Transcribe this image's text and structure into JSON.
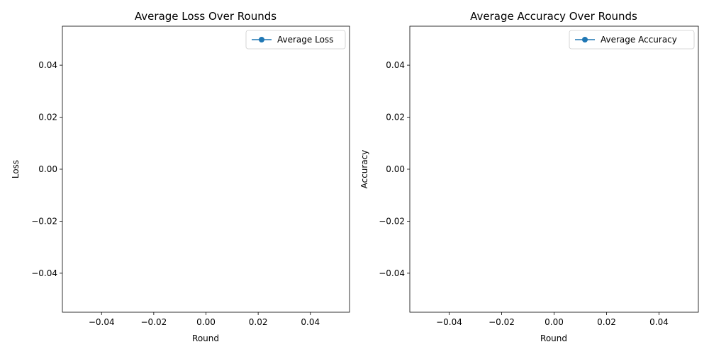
{
  "chart_data": [
    {
      "type": "line",
      "title": "Average Loss Over Rounds",
      "xlabel": "Round",
      "ylabel": "Loss",
      "xlim": [
        -0.055,
        0.055
      ],
      "ylim": [
        -0.055,
        0.055
      ],
      "x_ticks": [
        -0.04,
        -0.02,
        0.0,
        0.02,
        0.04
      ],
      "x_tick_labels": [
        "−0.04",
        "−0.02",
        "0.00",
        "0.02",
        "0.04"
      ],
      "y_ticks": [
        -0.04,
        -0.02,
        0.0,
        0.02,
        0.04
      ],
      "y_tick_labels": [
        "−0.04",
        "−0.02",
        "0.00",
        "0.02",
        "0.04"
      ],
      "grid": false,
      "legend_position": "upper right",
      "series": [
        {
          "name": "Average Loss",
          "color": "#1f77b4",
          "marker": "circle",
          "x": [],
          "y": []
        }
      ]
    },
    {
      "type": "line",
      "title": "Average Accuracy Over Rounds",
      "xlabel": "Round",
      "ylabel": "Accuracy",
      "xlim": [
        -0.055,
        0.055
      ],
      "ylim": [
        -0.055,
        0.055
      ],
      "x_ticks": [
        -0.04,
        -0.02,
        0.0,
        0.02,
        0.04
      ],
      "x_tick_labels": [
        "−0.04",
        "−0.02",
        "0.00",
        "0.02",
        "0.04"
      ],
      "y_ticks": [
        -0.04,
        -0.02,
        0.0,
        0.02,
        0.04
      ],
      "y_tick_labels": [
        "−0.04",
        "−0.02",
        "0.00",
        "0.02",
        "0.04"
      ],
      "grid": false,
      "legend_position": "upper right",
      "series": [
        {
          "name": "Average Accuracy",
          "color": "#1f77b4",
          "marker": "circle",
          "x": [],
          "y": []
        }
      ]
    }
  ]
}
